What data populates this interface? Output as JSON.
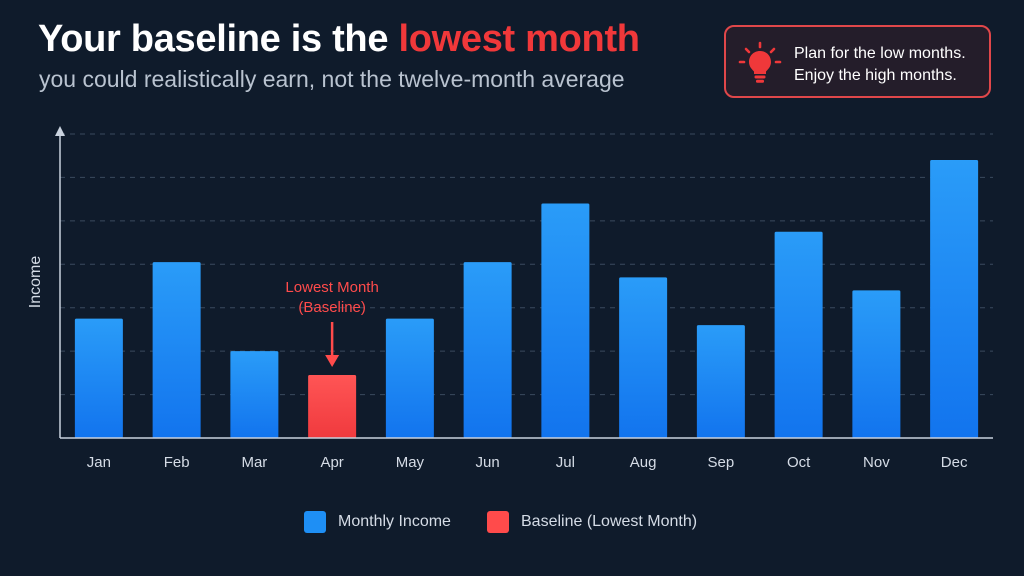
{
  "header": {
    "title_prefix": "Your baseline is the ",
    "title_highlight": "lowest month",
    "subtitle": "you could realistically earn, not the twelve-month average"
  },
  "callout": {
    "icon": "lightbulb-icon",
    "line1": "Plan for the low months.",
    "line2": "Enjoy the high months."
  },
  "colors": {
    "background": "#0f1b2b",
    "accent": "#f0383a",
    "bar": "#1e8ff5",
    "baseline_bar": "#ff4b4b"
  },
  "chart_data": {
    "type": "bar",
    "categories": [
      "Jan",
      "Feb",
      "Mar",
      "Apr",
      "May",
      "Jun",
      "Jul",
      "Aug",
      "Sep",
      "Oct",
      "Nov",
      "Dec"
    ],
    "series": [
      {
        "name": "Monthly Income",
        "values": [
          27.5,
          40.5,
          20,
          14.5,
          27.5,
          40.5,
          54,
          37,
          26,
          47.5,
          34,
          64
        ]
      }
    ],
    "highlight_index": 3,
    "annotation": {
      "line1": "Lowest Month",
      "line2": "(Baseline)"
    },
    "ylabel": "Income",
    "xlabel": "",
    "ylim": [
      0,
      70
    ],
    "grid": true,
    "legend": [
      {
        "label": "Monthly Income",
        "color": "#1e8ff5"
      },
      {
        "label": "Baseline (Lowest Month)",
        "color": "#ff4b4b"
      }
    ],
    "legend_position": "bottom-center"
  }
}
